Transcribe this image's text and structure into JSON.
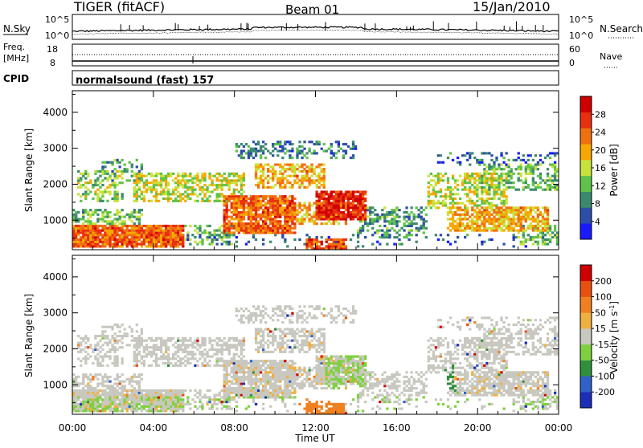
{
  "header": {
    "title": "TIGER (fitACF)",
    "beam": "Beam 01",
    "date": "15/Jan/2010"
  },
  "noise_panel": {
    "left_label": "N.Sky",
    "right_label": "N.Search",
    "left_ticks": [
      "10^5",
      "10^0"
    ],
    "right_ticks": [
      "10^5",
      "10^0"
    ]
  },
  "freq_panel": {
    "left_label_1": "Freq.",
    "left_label_2": "[MHz]",
    "right_label": "Nave",
    "left_ticks": [
      "18",
      "8"
    ],
    "right_ticks": [
      "60",
      "0"
    ]
  },
  "cpid_panel": {
    "label": "CPID",
    "text": "normalsound (fast) 157"
  },
  "colors": {
    "power_scale": [
      "#1a1aff",
      "#2b4ea8",
      "#3c8a6e",
      "#5fc24a",
      "#c8e23c",
      "#f6a800",
      "#f07010",
      "#e83010",
      "#d00000"
    ],
    "velocity_scale": [
      "#1c2db8",
      "#3060c8",
      "#2f8f3a",
      "#7fd040",
      "#c8c8c0",
      "#f0b040",
      "#f08020",
      "#e85010",
      "#d00000"
    ]
  },
  "chart_data": [
    {
      "type": "heatmap",
      "name": "power",
      "ylabel": "Slant Range [km]",
      "yticks": [
        "4000",
        "3000",
        "2000",
        "1000"
      ],
      "ylim": [
        180,
        4600
      ],
      "xlim": [
        "00:00",
        "24:00"
      ],
      "colorbar": {
        "label": "Power [dB]",
        "ticks": [
          "28",
          "24",
          "20",
          "16",
          "12",
          "8",
          "4"
        ],
        "range": [
          0,
          32
        ]
      }
    },
    {
      "type": "heatmap",
      "name": "velocity",
      "ylabel": "Slant Range [km]",
      "yticks": [
        "4000",
        "3000",
        "2000",
        "1000"
      ],
      "ylim": [
        180,
        4600
      ],
      "xlabel": "Time UT",
      "xticks": [
        "00:00",
        "04:00",
        "08:00",
        "12:00",
        "16:00",
        "20:00",
        "00:00"
      ],
      "colorbar": {
        "label": "Velocity [m s^-1]",
        "ticks": [
          "200",
          "100",
          "50",
          "15",
          "-15",
          "-50",
          "-100",
          "-200"
        ]
      }
    }
  ]
}
